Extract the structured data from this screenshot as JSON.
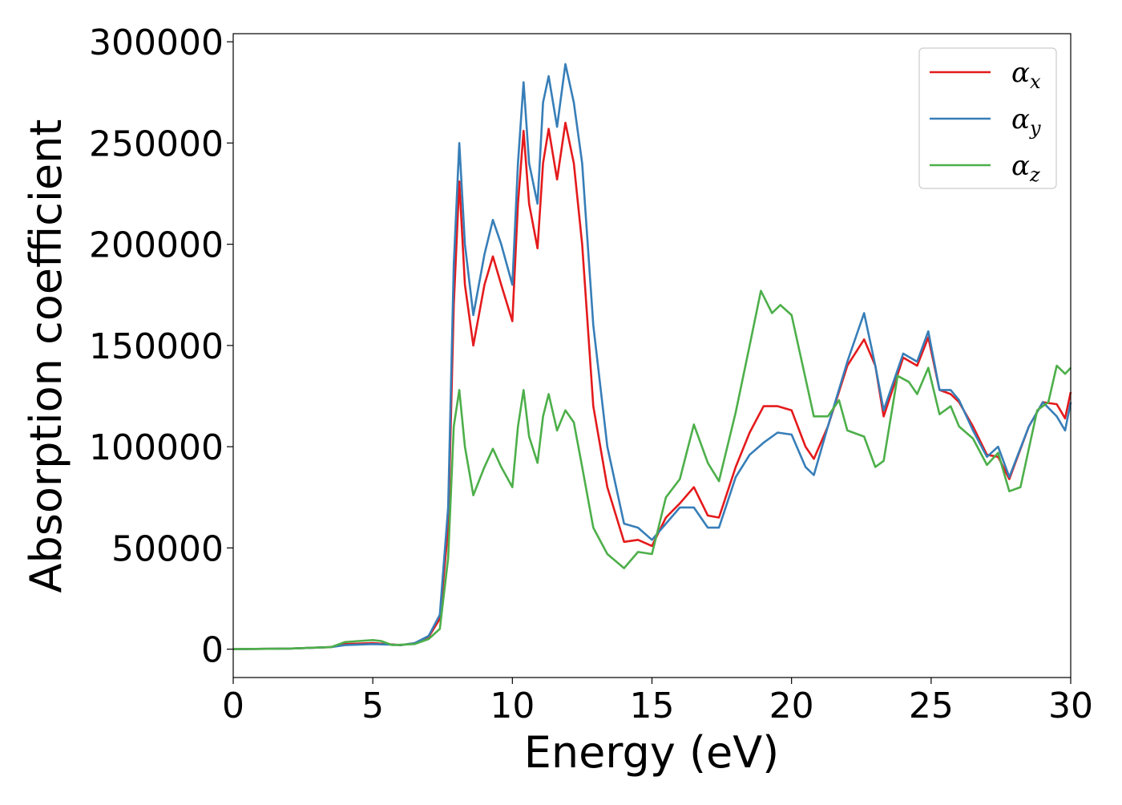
{
  "chart_data": {
    "type": "line",
    "xlabel": "Energy (eV)",
    "ylabel": "Absorption coefficient",
    "xlim": [
      0,
      30
    ],
    "ylim": [
      -14000,
      304000
    ],
    "xticks": [
      0,
      5,
      10,
      15,
      20,
      25,
      30
    ],
    "xtick_labels": [
      "0",
      "5",
      "10",
      "15",
      "20",
      "25",
      "30"
    ],
    "yticks": [
      0,
      50000,
      100000,
      150000,
      200000,
      250000,
      300000
    ],
    "ytick_labels": [
      "0",
      "50000",
      "100000",
      "150000",
      "200000",
      "250000",
      "300000"
    ],
    "grid": false,
    "legend_position": "top-right",
    "series": [
      {
        "name": "α_x",
        "legend_base": "α",
        "legend_sub": "x",
        "color": "#e41a1c",
        "points": [
          [
            0,
            0
          ],
          [
            2,
            300
          ],
          [
            3.5,
            1000
          ],
          [
            4,
            2500
          ],
          [
            5,
            3000
          ],
          [
            5.5,
            2500
          ],
          [
            6,
            2000
          ],
          [
            6.5,
            3000
          ],
          [
            7,
            6000
          ],
          [
            7.4,
            15000
          ],
          [
            7.7,
            60000
          ],
          [
            7.9,
            170000
          ],
          [
            8.1,
            231000
          ],
          [
            8.3,
            180000
          ],
          [
            8.6,
            150000
          ],
          [
            9,
            180000
          ],
          [
            9.3,
            194000
          ],
          [
            9.6,
            180000
          ],
          [
            10,
            162000
          ],
          [
            10.2,
            220000
          ],
          [
            10.4,
            256000
          ],
          [
            10.6,
            220000
          ],
          [
            10.9,
            198000
          ],
          [
            11.1,
            240000
          ],
          [
            11.3,
            257000
          ],
          [
            11.6,
            232000
          ],
          [
            11.9,
            260000
          ],
          [
            12.2,
            240000
          ],
          [
            12.5,
            200000
          ],
          [
            12.9,
            120000
          ],
          [
            13.4,
            80000
          ],
          [
            14,
            53000
          ],
          [
            14.5,
            54000
          ],
          [
            15,
            51000
          ],
          [
            15.5,
            65000
          ],
          [
            16,
            72000
          ],
          [
            16.5,
            80000
          ],
          [
            17,
            66000
          ],
          [
            17.4,
            65000
          ],
          [
            18,
            90000
          ],
          [
            18.5,
            107000
          ],
          [
            19,
            120000
          ],
          [
            19.5,
            120000
          ],
          [
            20,
            118000
          ],
          [
            20.5,
            100000
          ],
          [
            20.8,
            94000
          ],
          [
            21.3,
            110000
          ],
          [
            22,
            140000
          ],
          [
            22.6,
            153000
          ],
          [
            23,
            140000
          ],
          [
            23.3,
            115000
          ],
          [
            24,
            144000
          ],
          [
            24.5,
            140000
          ],
          [
            24.9,
            154000
          ],
          [
            25.3,
            128000
          ],
          [
            25.7,
            126000
          ],
          [
            26,
            122000
          ],
          [
            26.5,
            110000
          ],
          [
            27,
            96000
          ],
          [
            27.4,
            95000
          ],
          [
            27.8,
            84000
          ],
          [
            28.5,
            110000
          ],
          [
            29,
            122000
          ],
          [
            29.5,
            121000
          ],
          [
            29.8,
            114000
          ],
          [
            30,
            127000
          ]
        ]
      },
      {
        "name": "α_y",
        "legend_base": "α",
        "legend_sub": "y",
        "color": "#377eb8",
        "points": [
          [
            0,
            0
          ],
          [
            2,
            300
          ],
          [
            3.5,
            1000
          ],
          [
            4,
            2000
          ],
          [
            5,
            2500
          ],
          [
            5.5,
            2300
          ],
          [
            6,
            2000
          ],
          [
            6.5,
            3000
          ],
          [
            7,
            6500
          ],
          [
            7.4,
            17000
          ],
          [
            7.7,
            70000
          ],
          [
            7.9,
            190000
          ],
          [
            8.1,
            250000
          ],
          [
            8.3,
            200000
          ],
          [
            8.6,
            165000
          ],
          [
            9,
            195000
          ],
          [
            9.3,
            212000
          ],
          [
            9.6,
            200000
          ],
          [
            10,
            180000
          ],
          [
            10.2,
            240000
          ],
          [
            10.4,
            280000
          ],
          [
            10.6,
            240000
          ],
          [
            10.9,
            220000
          ],
          [
            11.1,
            270000
          ],
          [
            11.3,
            283000
          ],
          [
            11.6,
            258000
          ],
          [
            11.9,
            289000
          ],
          [
            12.2,
            270000
          ],
          [
            12.5,
            240000
          ],
          [
            12.9,
            160000
          ],
          [
            13.4,
            100000
          ],
          [
            14,
            62000
          ],
          [
            14.5,
            60000
          ],
          [
            15,
            54000
          ],
          [
            15.5,
            62000
          ],
          [
            16,
            70000
          ],
          [
            16.5,
            70000
          ],
          [
            17,
            60000
          ],
          [
            17.4,
            60000
          ],
          [
            18,
            85000
          ],
          [
            18.5,
            96000
          ],
          [
            19,
            102000
          ],
          [
            19.5,
            107000
          ],
          [
            20,
            106000
          ],
          [
            20.5,
            90000
          ],
          [
            20.8,
            86000
          ],
          [
            21.3,
            110000
          ],
          [
            22,
            142000
          ],
          [
            22.6,
            166000
          ],
          [
            23,
            140000
          ],
          [
            23.3,
            118000
          ],
          [
            24,
            146000
          ],
          [
            24.5,
            142000
          ],
          [
            24.9,
            157000
          ],
          [
            25.3,
            128000
          ],
          [
            25.7,
            128000
          ],
          [
            26,
            123000
          ],
          [
            26.5,
            108000
          ],
          [
            27,
            95000
          ],
          [
            27.4,
            100000
          ],
          [
            27.8,
            85000
          ],
          [
            28.5,
            110000
          ],
          [
            29,
            122000
          ],
          [
            29.5,
            115000
          ],
          [
            29.8,
            108000
          ],
          [
            30,
            122000
          ]
        ]
      },
      {
        "name": "α_z",
        "legend_base": "α",
        "legend_sub": "z",
        "color": "#4daf4a",
        "points": [
          [
            0,
            0
          ],
          [
            2,
            300
          ],
          [
            3.5,
            1000
          ],
          [
            4,
            3500
          ],
          [
            4.5,
            4000
          ],
          [
            5,
            4500
          ],
          [
            5.3,
            4000
          ],
          [
            5.7,
            2000
          ],
          [
            6.5,
            2500
          ],
          [
            7,
            5000
          ],
          [
            7.4,
            10000
          ],
          [
            7.7,
            45000
          ],
          [
            7.9,
            110000
          ],
          [
            8.1,
            128000
          ],
          [
            8.3,
            100000
          ],
          [
            8.6,
            76000
          ],
          [
            9,
            90000
          ],
          [
            9.3,
            99000
          ],
          [
            9.6,
            90000
          ],
          [
            10,
            80000
          ],
          [
            10.2,
            110000
          ],
          [
            10.4,
            128000
          ],
          [
            10.6,
            105000
          ],
          [
            10.9,
            92000
          ],
          [
            11.1,
            115000
          ],
          [
            11.3,
            126000
          ],
          [
            11.6,
            108000
          ],
          [
            11.9,
            118000
          ],
          [
            12.2,
            112000
          ],
          [
            12.5,
            90000
          ],
          [
            12.9,
            60000
          ],
          [
            13.4,
            47000
          ],
          [
            14,
            40000
          ],
          [
            14.5,
            48000
          ],
          [
            15,
            47000
          ],
          [
            15.5,
            75000
          ],
          [
            16,
            84000
          ],
          [
            16.5,
            111000
          ],
          [
            17,
            92000
          ],
          [
            17.4,
            83000
          ],
          [
            18,
            117000
          ],
          [
            18.5,
            150000
          ],
          [
            18.9,
            177000
          ],
          [
            19.3,
            166000
          ],
          [
            19.6,
            170000
          ],
          [
            20,
            165000
          ],
          [
            20.4,
            140000
          ],
          [
            20.8,
            115000
          ],
          [
            21.3,
            115000
          ],
          [
            21.7,
            123000
          ],
          [
            22,
            108000
          ],
          [
            22.6,
            105000
          ],
          [
            23,
            90000
          ],
          [
            23.3,
            93000
          ],
          [
            23.8,
            135000
          ],
          [
            24.2,
            132000
          ],
          [
            24.5,
            126000
          ],
          [
            24.9,
            139000
          ],
          [
            25.3,
            116000
          ],
          [
            25.7,
            120000
          ],
          [
            26,
            110000
          ],
          [
            26.5,
            104000
          ],
          [
            27,
            91000
          ],
          [
            27.4,
            97000
          ],
          [
            27.8,
            78000
          ],
          [
            28.2,
            80000
          ],
          [
            28.8,
            118000
          ],
          [
            29.2,
            122000
          ],
          [
            29.5,
            140000
          ],
          [
            29.8,
            136000
          ],
          [
            30,
            139000
          ]
        ]
      }
    ]
  }
}
